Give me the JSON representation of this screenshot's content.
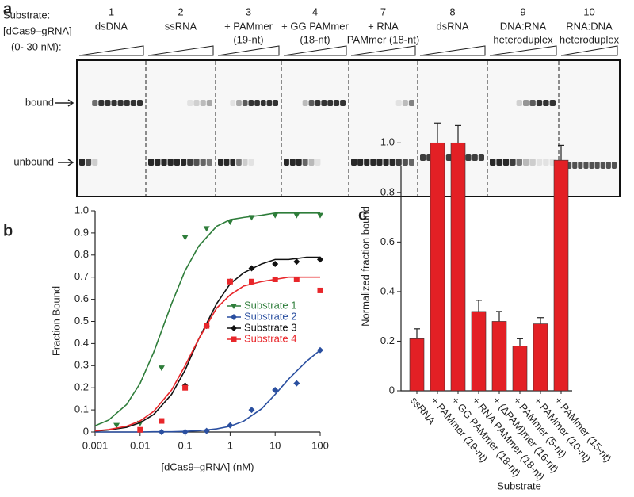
{
  "panel_a": {
    "label": "a",
    "substrate_label": "Substrate:",
    "conc_label": "[dCas9–gRNA]",
    "conc_range": "(0- 30 nM):",
    "bound_label": "bound",
    "unbound_label": "unbound",
    "lanes": [
      {
        "number": "1",
        "name": [
          "dsDNA"
        ]
      },
      {
        "number": "2",
        "name": [
          "ssRNA"
        ]
      },
      {
        "number": "3",
        "name": [
          "+ PAMmer",
          "(19-nt)"
        ]
      },
      {
        "number": "4",
        "name": [
          "+ GG PAMmer",
          "(18-nt)"
        ]
      },
      {
        "number": "7",
        "name": [
          "+ RNA",
          "PAMmer (18-nt)"
        ]
      },
      {
        "number": "8",
        "name": [
          "dsRNA"
        ]
      },
      {
        "number": "9",
        "name": [
          "DNA:RNA",
          "heteroduplex"
        ]
      },
      {
        "number": "10",
        "name": [
          "RNA:DNA",
          "heteroduplex"
        ]
      }
    ]
  },
  "chart_data": [
    {
      "type": "scatter",
      "panel_label": "b",
      "xlabel": "[dCas9–gRNA] (nM)",
      "ylabel": "Fraction Bound",
      "xscale": "log",
      "xlim": [
        0.001,
        100
      ],
      "xticks": [
        0.001,
        0.01,
        0.1,
        1,
        10,
        100
      ],
      "ylim": [
        0,
        1
      ],
      "yticks": [
        0,
        0.1,
        0.2,
        0.3,
        0.4,
        0.5,
        0.6,
        0.7,
        0.8,
        0.9,
        {
          "value": 1,
          "label": "1.0"
        }
      ],
      "legend": "center-right",
      "fit_x": [
        0.001,
        0.002,
        0.005,
        0.01,
        0.02,
        0.05,
        0.1,
        0.2,
        0.5,
        1,
        2,
        5,
        10,
        20,
        50,
        100
      ],
      "series": [
        {
          "name": "Substrate 1",
          "color": "#2e7d3a",
          "marker": "triangle-down",
          "x": [
            0.003,
            0.01,
            0.03,
            0.1,
            0.3,
            1,
            3,
            10,
            30,
            100
          ],
          "values": [
            0.03,
            0.04,
            0.29,
            0.88,
            0.92,
            0.95,
            0.97,
            0.98,
            0.98,
            0.98
          ],
          "fit": [
            0.028,
            0.054,
            0.124,
            0.22,
            0.36,
            0.58,
            0.73,
            0.84,
            0.93,
            0.96,
            0.97,
            0.98,
            0.99,
            0.99,
            0.99,
            0.99
          ]
        },
        {
          "name": "Substrate 2",
          "color": "#2a4fa0",
          "marker": "diamond",
          "x": [
            0.03,
            0.1,
            0.3,
            1,
            3,
            10,
            30,
            100
          ],
          "values": [
            0,
            0,
            0.005,
            0.03,
            0.1,
            0.19,
            0.22,
            0.37
          ],
          "fit": [
            0,
            0,
            0,
            0,
            0.001,
            0.001,
            0.003,
            0.006,
            0.014,
            0.026,
            0.049,
            0.105,
            0.17,
            0.24,
            0.32,
            0.37
          ]
        },
        {
          "name": "Substrate 3",
          "color": "#111111",
          "marker": "diamond",
          "x": [
            0.1,
            0.3,
            1,
            3,
            10,
            30,
            100
          ],
          "values": [
            0.21,
            0.48,
            0.68,
            0.74,
            0.76,
            0.77,
            0.78
          ],
          "fit": [
            0.004,
            0.009,
            0.021,
            0.042,
            0.079,
            0.17,
            0.28,
            0.42,
            0.58,
            0.67,
            0.72,
            0.76,
            0.78,
            0.78,
            0.79,
            0.79
          ]
        },
        {
          "name": "Substrate 4",
          "color": "#e8262a",
          "marker": "square",
          "x": [
            0.01,
            0.03,
            0.1,
            0.3,
            1,
            3,
            10,
            30,
            100
          ],
          "values": [
            0.01,
            0.05,
            0.2,
            0.48,
            0.68,
            0.68,
            0.69,
            0.69,
            0.64
          ],
          "fit": [
            0.005,
            0.011,
            0.026,
            0.05,
            0.093,
            0.19,
            0.3,
            0.42,
            0.56,
            0.62,
            0.66,
            0.68,
            0.69,
            0.7,
            0.7,
            0.7
          ]
        }
      ]
    },
    {
      "type": "bar",
      "panel_label": "c",
      "xlabel": "Substrate",
      "ylabel": "Normalized fraction bound",
      "color": "#e32025",
      "categories": [
        "ssRNA",
        "+ PAMmer (19-nt)",
        "+ GG PAMmer (18-nt)",
        "+ RNA PAMmer (18-nt)",
        "+ (ΔPAM)mer (16-nt)",
        "+ PAMmer (5-nt)",
        "+ PAMmer (10-nt)",
        "+ PAMmer (15-nt)"
      ],
      "values": [
        0.21,
        1.0,
        1.0,
        0.32,
        0.28,
        0.18,
        0.27,
        0.93
      ],
      "errors": [
        0.04,
        0.08,
        0.07,
        0.045,
        0.04,
        0.03,
        0.025,
        0.06
      ],
      "ylim": [
        0,
        1.1
      ],
      "yticks": [
        0,
        0.2,
        0.4,
        0.6,
        0.8,
        {
          "value": 1,
          "label": "1.0"
        }
      ]
    }
  ]
}
